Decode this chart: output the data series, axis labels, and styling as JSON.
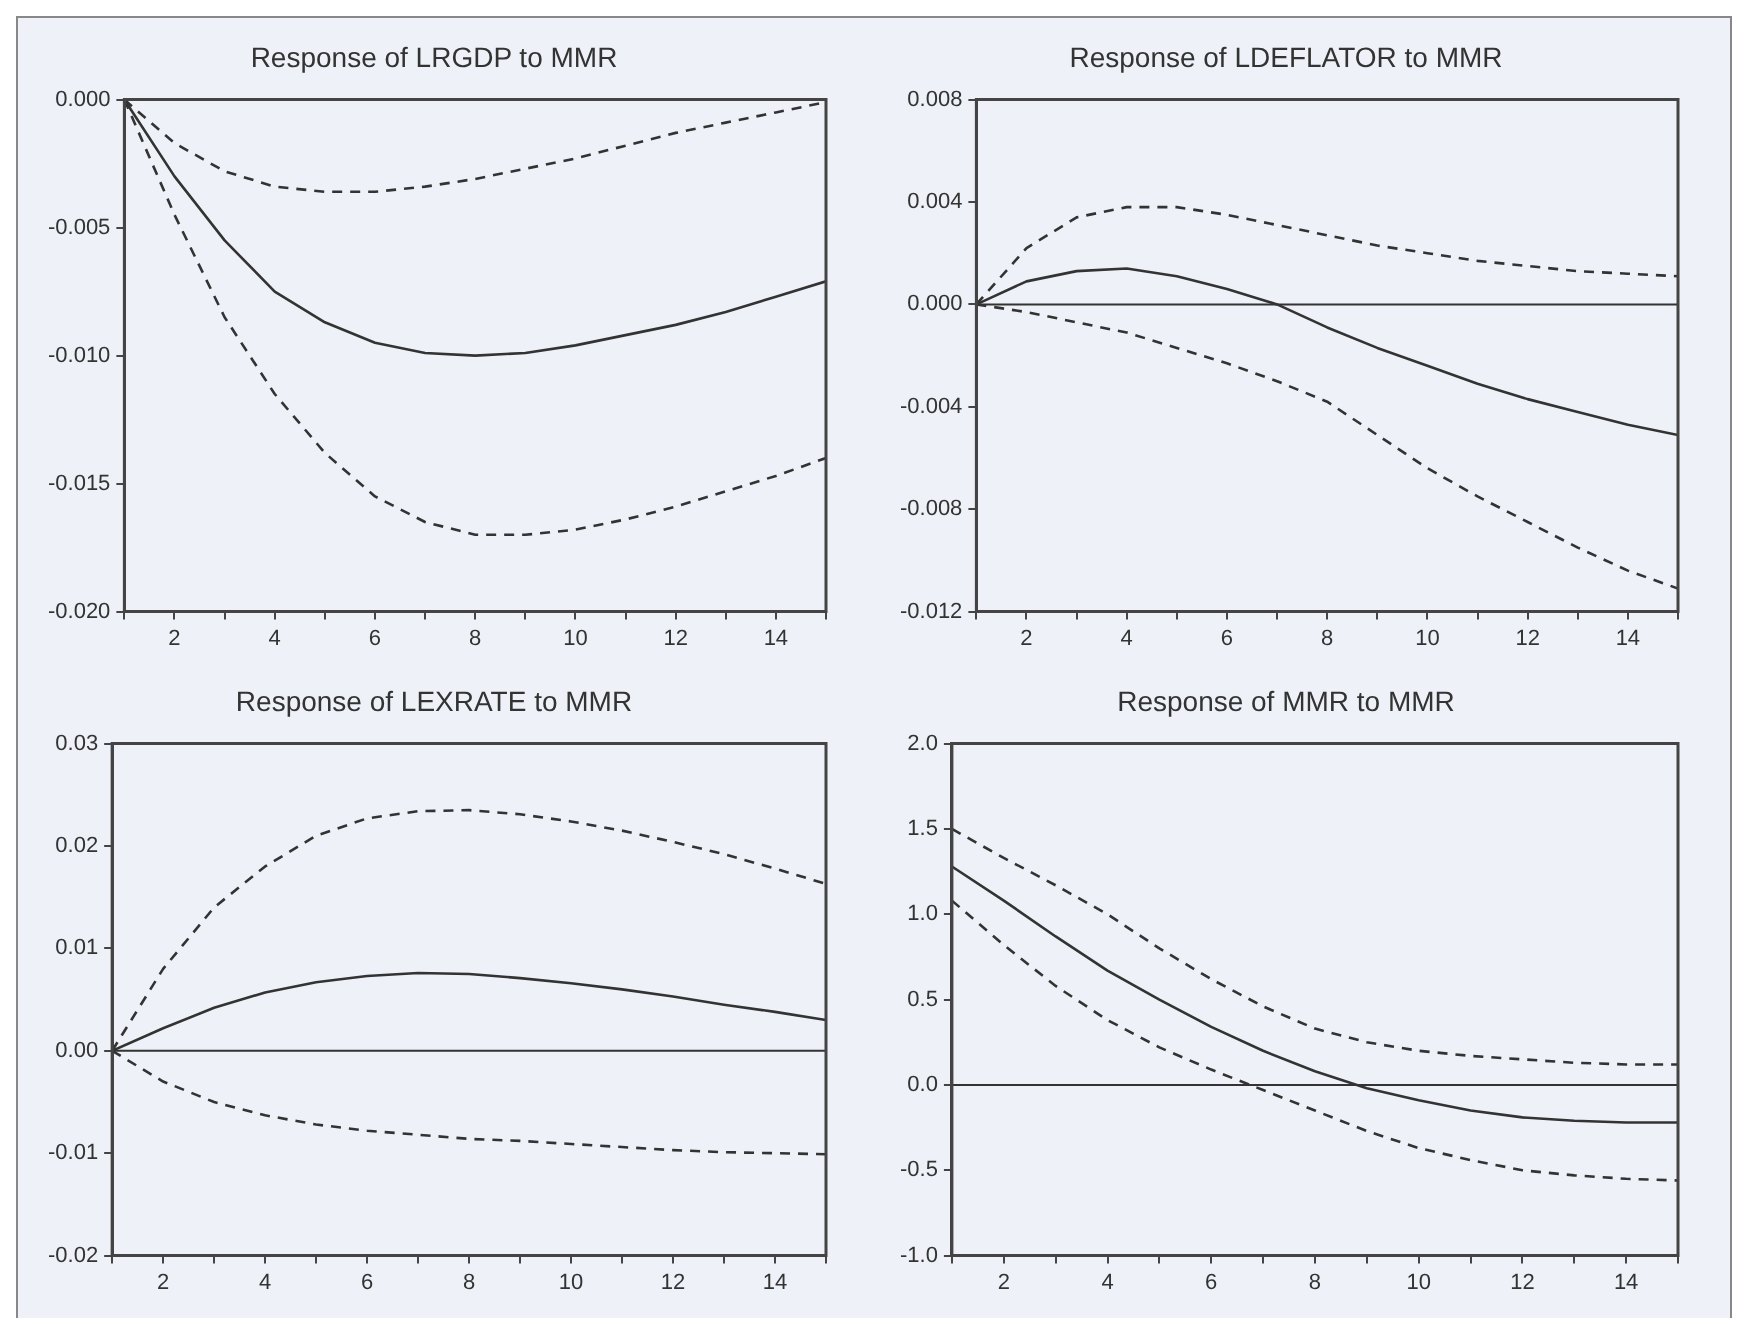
{
  "chart_data": [
    {
      "type": "line",
      "title": "Response of LRGDP to MMR",
      "x": [
        1,
        2,
        3,
        4,
        5,
        6,
        7,
        8,
        9,
        10,
        11,
        12,
        13,
        14,
        15
      ],
      "xlim": [
        1,
        15
      ],
      "xticks": [
        {
          "value": 1,
          "label": null
        },
        2,
        {
          "value": 3,
          "label": null
        },
        4,
        {
          "value": 5,
          "label": null
        },
        6,
        {
          "value": 7,
          "label": null
        },
        8,
        {
          "value": 9,
          "label": null
        },
        10,
        {
          "value": 11,
          "label": null
        },
        12,
        {
          "value": 13,
          "label": null
        },
        14,
        {
          "value": 15,
          "label": null
        }
      ],
      "ylim": [
        -0.02,
        0
      ],
      "yticks": [
        {
          "value": -0.02,
          "label": "-0.020"
        },
        {
          "value": -0.015,
          "label": "-0.015"
        },
        {
          "value": -0.01,
          "label": "-0.010"
        },
        {
          "value": -0.005,
          "label": "-0.005"
        },
        {
          "value": 0,
          "label": "0.000"
        }
      ],
      "grid": false,
      "legend": false,
      "marker": "none",
      "series": [
        {
          "color": "#333333",
          "line_style": "solid",
          "values": [
            0,
            -0.003,
            -0.0055,
            -0.0075,
            -0.0087,
            -0.0095,
            -0.0099,
            -0.01,
            -0.0099,
            -0.0096,
            -0.0092,
            -0.0088,
            -0.0083,
            -0.0077,
            -0.0071
          ]
        },
        {
          "color": "#333333",
          "line_style": "dashed",
          "values": [
            0,
            -0.0017,
            -0.0028,
            -0.0034,
            -0.0036,
            -0.0036,
            -0.0034,
            -0.0031,
            -0.0027,
            -0.0023,
            -0.0018,
            -0.0013,
            -0.0009,
            -0.0005,
            -0.0001
          ]
        },
        {
          "color": "#333333",
          "line_style": "dashed",
          "values": [
            0,
            -0.0045,
            -0.0085,
            -0.0115,
            -0.0138,
            -0.0155,
            -0.0165,
            -0.017,
            -0.017,
            -0.0168,
            -0.0164,
            -0.0159,
            -0.0153,
            -0.0147,
            -0.014
          ]
        }
      ]
    },
    {
      "type": "line",
      "title": "Response of LDEFLATOR to MMR",
      "x": [
        1,
        2,
        3,
        4,
        5,
        6,
        7,
        8,
        9,
        10,
        11,
        12,
        13,
        14,
        15
      ],
      "xlim": [
        1,
        15
      ],
      "xticks": [
        {
          "value": 1,
          "label": null
        },
        2,
        {
          "value": 3,
          "label": null
        },
        4,
        {
          "value": 5,
          "label": null
        },
        6,
        {
          "value": 7,
          "label": null
        },
        8,
        {
          "value": 9,
          "label": null
        },
        10,
        {
          "value": 11,
          "label": null
        },
        12,
        {
          "value": 13,
          "label": null
        },
        14,
        {
          "value": 15,
          "label": null
        }
      ],
      "ylim": [
        -0.012,
        0.008
      ],
      "yticks": [
        {
          "value": -0.012,
          "label": "-0.012"
        },
        {
          "value": -0.008,
          "label": "-0.008"
        },
        {
          "value": -0.004,
          "label": "-0.004"
        },
        {
          "value": 0,
          "label": "0.000"
        },
        {
          "value": 0.004,
          "label": "0.004"
        },
        {
          "value": 0.008,
          "label": "0.008"
        }
      ],
      "grid": false,
      "legend": false,
      "marker": "none",
      "ref_lines": [
        {
          "axis": "y",
          "value": 0,
          "color": "#333333"
        }
      ],
      "series": [
        {
          "color": "#333333",
          "line_style": "solid",
          "values": [
            0,
            0.0009,
            0.0013,
            0.0014,
            0.0011,
            0.0006,
            0,
            -0.0009,
            -0.0017,
            -0.0024,
            -0.0031,
            -0.0037,
            -0.0042,
            -0.0047,
            -0.0051
          ]
        },
        {
          "color": "#333333",
          "line_style": "dashed",
          "values": [
            0,
            0.0022,
            0.0034,
            0.0038,
            0.0038,
            0.0035,
            0.0031,
            0.0027,
            0.0023,
            0.002,
            0.0017,
            0.0015,
            0.0013,
            0.0012,
            0.0011
          ]
        },
        {
          "color": "#333333",
          "line_style": "dashed",
          "values": [
            0,
            -0.0003,
            -0.0007,
            -0.0011,
            -0.0017,
            -0.0023,
            -0.003,
            -0.0038,
            -0.0051,
            -0.0064,
            -0.0075,
            -0.0085,
            -0.0095,
            -0.0104,
            -0.0111
          ]
        }
      ]
    },
    {
      "type": "line",
      "title": "Response of LEXRATE to MMR",
      "x": [
        1,
        2,
        3,
        4,
        5,
        6,
        7,
        8,
        9,
        10,
        11,
        12,
        13,
        14,
        15
      ],
      "xlim": [
        1,
        15
      ],
      "xticks": [
        {
          "value": 1,
          "label": null
        },
        2,
        {
          "value": 3,
          "label": null
        },
        4,
        {
          "value": 5,
          "label": null
        },
        6,
        {
          "value": 7,
          "label": null
        },
        8,
        {
          "value": 9,
          "label": null
        },
        10,
        {
          "value": 11,
          "label": null
        },
        12,
        {
          "value": 13,
          "label": null
        },
        14,
        {
          "value": 15,
          "label": null
        }
      ],
      "ylim": [
        -0.02,
        0.03
      ],
      "yticks": [
        {
          "value": -0.02,
          "label": "-0.02"
        },
        {
          "value": -0.01,
          "label": "-0.01"
        },
        {
          "value": 0,
          "label": "0.00"
        },
        {
          "value": 0.01,
          "label": "0.01"
        },
        {
          "value": 0.02,
          "label": "0.02"
        },
        {
          "value": 0.03,
          "label": "0.03"
        }
      ],
      "grid": false,
      "legend": false,
      "marker": "none",
      "ref_lines": [
        {
          "axis": "y",
          "value": 0,
          "color": "#333333"
        }
      ],
      "series": [
        {
          "color": "#333333",
          "line_style": "solid",
          "values": [
            0,
            0.0022,
            0.0042,
            0.0057,
            0.0067,
            0.0073,
            0.0076,
            0.0075,
            0.0071,
            0.0066,
            0.006,
            0.0053,
            0.0045,
            0.0038,
            0.003
          ]
        },
        {
          "color": "#333333",
          "line_style": "dashed",
          "values": [
            0,
            0.008,
            0.014,
            0.018,
            0.021,
            0.0227,
            0.0234,
            0.0235,
            0.0231,
            0.0224,
            0.0215,
            0.0204,
            0.0192,
            0.0178,
            0.0163
          ]
        },
        {
          "color": "#333333",
          "line_style": "dashed",
          "values": [
            0,
            -0.003,
            -0.005,
            -0.0063,
            -0.0072,
            -0.0078,
            -0.0082,
            -0.0086,
            -0.0088,
            -0.0091,
            -0.0094,
            -0.0097,
            -0.0099,
            -0.01,
            -0.0101
          ]
        }
      ]
    },
    {
      "type": "line",
      "title": "Response of MMR to MMR",
      "x": [
        1,
        2,
        3,
        4,
        5,
        6,
        7,
        8,
        9,
        10,
        11,
        12,
        13,
        14,
        15
      ],
      "xlim": [
        1,
        15
      ],
      "xticks": [
        {
          "value": 1,
          "label": null
        },
        2,
        {
          "value": 3,
          "label": null
        },
        4,
        {
          "value": 5,
          "label": null
        },
        6,
        {
          "value": 7,
          "label": null
        },
        8,
        {
          "value": 9,
          "label": null
        },
        10,
        {
          "value": 11,
          "label": null
        },
        12,
        {
          "value": 13,
          "label": null
        },
        14,
        {
          "value": 15,
          "label": null
        }
      ],
      "ylim": [
        -1,
        2
      ],
      "yticks": [
        {
          "value": -1,
          "label": "-1.0"
        },
        {
          "value": -0.5,
          "label": "-0.5"
        },
        {
          "value": 0,
          "label": "0.0"
        },
        {
          "value": 0.5,
          "label": "0.5"
        },
        {
          "value": 1,
          "label": "1.0"
        },
        {
          "value": 1.5,
          "label": "1.5"
        },
        {
          "value": 2,
          "label": "2.0"
        }
      ],
      "grid": false,
      "legend": false,
      "marker": "none",
      "ref_lines": [
        {
          "axis": "y",
          "value": 0,
          "color": "#333333"
        }
      ],
      "series": [
        {
          "color": "#333333",
          "line_style": "solid",
          "values": [
            1.28,
            1.08,
            0.87,
            0.67,
            0.5,
            0.34,
            0.2,
            0.08,
            -0.02,
            -0.09,
            -0.15,
            -0.19,
            -0.21,
            -0.22,
            -0.22
          ]
        },
        {
          "color": "#333333",
          "line_style": "dashed",
          "values": [
            1.5,
            1.33,
            1.17,
            1,
            0.8,
            0.62,
            0.46,
            0.33,
            0.25,
            0.2,
            0.17,
            0.15,
            0.13,
            0.12,
            0.12
          ]
        },
        {
          "color": "#333333",
          "line_style": "dashed",
          "values": [
            1.08,
            0.82,
            0.58,
            0.38,
            0.22,
            0.09,
            -0.03,
            -0.15,
            -0.27,
            -0.37,
            -0.44,
            -0.5,
            -0.53,
            -0.55,
            -0.56
          ]
        }
      ]
    }
  ]
}
